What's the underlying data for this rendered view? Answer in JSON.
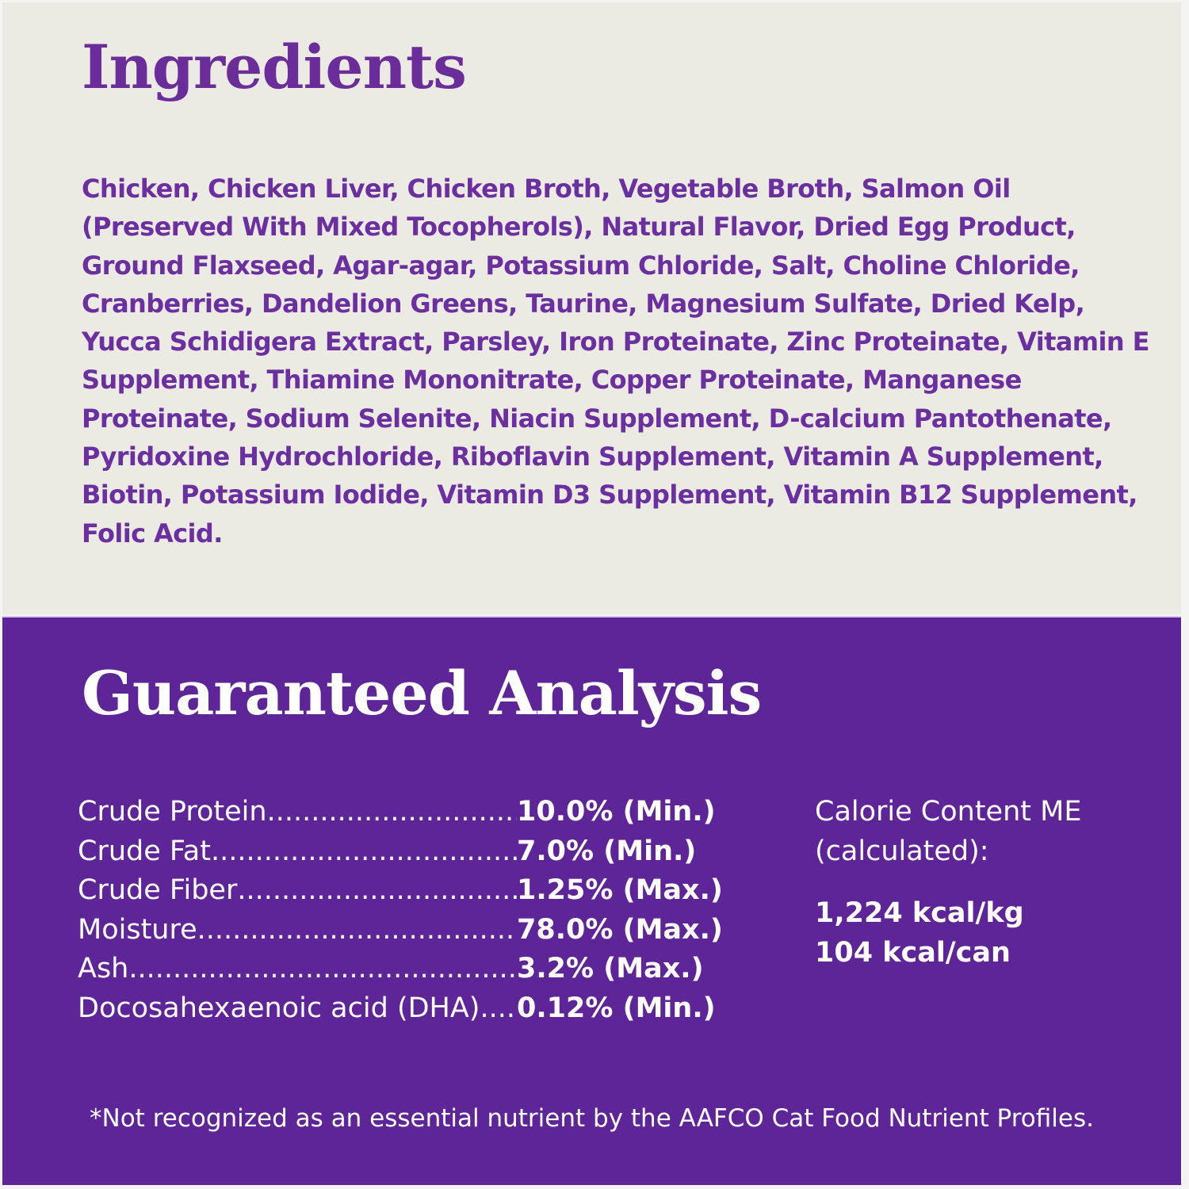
{
  "colors": {
    "cream": "#ebeae3",
    "purple": "#5e2599",
    "title_purple": "#6a2d9a"
  },
  "ingredients": {
    "title": "Ingredients",
    "lines": [
      "Chicken, Chicken Liver, Chicken Broth, Vegetable Broth, Salmon Oil",
      "(Preserved With Mixed Tocopherols), Natural Flavor, Dried Egg Product,",
      "Ground Flaxseed, Agar-agar, Potassium Chloride, Salt, Choline Chloride,",
      "Cranberries, Dandelion Greens, Taurine, Magnesium Sulfate, Dried Kelp,",
      "Yucca Schidigera Extract, Parsley, Iron Proteinate, Zinc Proteinate, Vitamin E",
      "Supplement, Thiamine Mononitrate, Copper Proteinate, Manganese",
      "Proteinate, Sodium Selenite, Niacin Supplement, D-calcium Pantothenate,",
      "Pyridoxine Hydrochloride, Riboflavin Supplement, Vitamin A Supplement,",
      "Biotin, Potassium Iodide, Vitamin D3 Supplement, Vitamin B12 Supplement,",
      "Folic Acid."
    ]
  },
  "analysis": {
    "title": "Guaranteed Analysis",
    "rows": [
      {
        "label": "Crude Protein",
        "value": "10.0% (Min.)"
      },
      {
        "label": "Crude Fat",
        "value": "7.0% (Min.)"
      },
      {
        "label": "Crude Fiber",
        "value": "1.25% (Max.)"
      },
      {
        "label": "Moisture",
        "value": "78.0% (Max.)"
      },
      {
        "label": "Ash",
        "value": "3.2% (Max.)"
      },
      {
        "label": "Docosahexaenoic acid (DHA)",
        "value": "0.12% (Min.)"
      }
    ],
    "calorie": {
      "heading_1": "Calorie Content ME",
      "heading_2": "(calculated):",
      "per_kg": "1,224 kcal/kg",
      "per_can": "104 kcal/can"
    },
    "footnote": "*Not recognized as an essential nutrient by the AAFCO Cat Food Nutrient Profiles."
  }
}
